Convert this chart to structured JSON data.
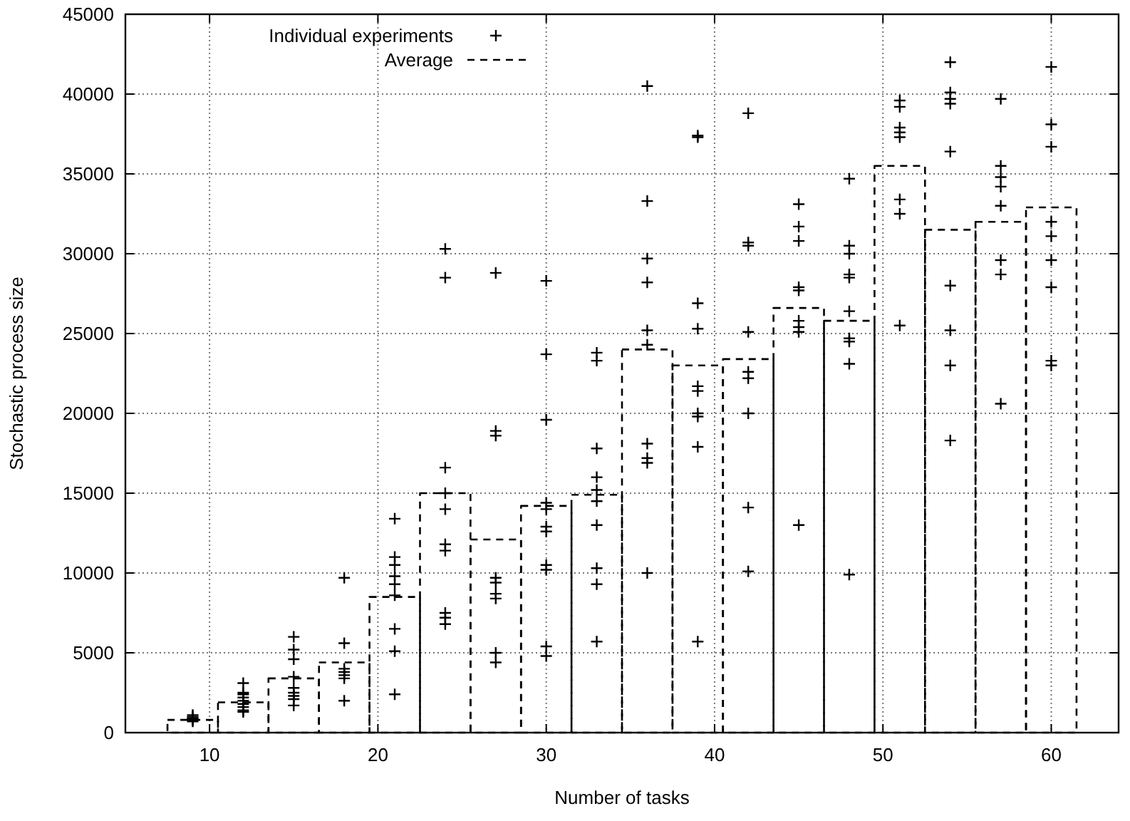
{
  "chart_data": {
    "type": "bar",
    "xlabel": "Number of tasks",
    "ylabel": "Stochastic process size",
    "x": [
      9,
      12,
      15,
      18,
      21,
      24,
      27,
      30,
      33,
      36,
      39,
      42,
      45,
      48,
      51,
      54,
      57,
      60
    ],
    "xlim": [
      5,
      64
    ],
    "xticks": [
      10,
      20,
      30,
      40,
      50,
      60
    ],
    "ylim": [
      0,
      45000
    ],
    "yticks": [
      0,
      5000,
      10000,
      15000,
      20000,
      25000,
      30000,
      35000,
      40000,
      45000
    ],
    "grid": true,
    "legend": "top left",
    "series": [
      {
        "name": "Individual experiments",
        "type": "scatter",
        "marker": "cross",
        "color": "#000000",
        "x": [
          9,
          9,
          9,
          9,
          9,
          9,
          9,
          12,
          12,
          12,
          12,
          12,
          12,
          12,
          12,
          12,
          15,
          15,
          15,
          15,
          15,
          15,
          15,
          15,
          15,
          18,
          18,
          18,
          18,
          18,
          18,
          18,
          21,
          21,
          21,
          21,
          21,
          21,
          21,
          21,
          21,
          24,
          24,
          24,
          24,
          24,
          24,
          24,
          24,
          24,
          24,
          27,
          27,
          27,
          27,
          27,
          27,
          27,
          27,
          27,
          30,
          30,
          30,
          30,
          30,
          30,
          30,
          30,
          30,
          30,
          30,
          33,
          33,
          33,
          33,
          33,
          33,
          33,
          33,
          33,
          33,
          36,
          36,
          36,
          36,
          36,
          36,
          36,
          36,
          36,
          36,
          39,
          39,
          39,
          39,
          39,
          39,
          39,
          39,
          39,
          39,
          42,
          42,
          42,
          42,
          42,
          42,
          42,
          42,
          42,
          45,
          45,
          45,
          45,
          45,
          45,
          45,
          45,
          45,
          48,
          48,
          48,
          48,
          48,
          48,
          48,
          48,
          48,
          48,
          51,
          51,
          51,
          51,
          51,
          51,
          51,
          51,
          54,
          54,
          54,
          54,
          54,
          54,
          54,
          54,
          54,
          57,
          57,
          57,
          57,
          57,
          57,
          57,
          57,
          60,
          60,
          60,
          60,
          60,
          60,
          60,
          60,
          60
        ],
        "values": [
          700,
          800,
          800,
          900,
          900,
          1000,
          1100,
          3100,
          2500,
          2200,
          2000,
          1800,
          1600,
          1400,
          1300,
          2400,
          6000,
          5200,
          4600,
          3500,
          2800,
          2500,
          2300,
          2100,
          1700,
          9700,
          5600,
          4000,
          3800,
          3600,
          3400,
          2000,
          13400,
          11000,
          10500,
          9800,
          9300,
          8600,
          6500,
          5100,
          2400,
          30300,
          28500,
          16600,
          15000,
          14000,
          11800,
          11400,
          7500,
          7200,
          6800,
          28800,
          18900,
          18600,
          9700,
          9400,
          8700,
          8400,
          5000,
          4400,
          28300,
          23700,
          19600,
          14400,
          14000,
          12900,
          12600,
          10500,
          10200,
          5400,
          4800,
          23800,
          23300,
          17800,
          16000,
          15200,
          14500,
          13000,
          10300,
          9300,
          5700,
          40500,
          33300,
          29700,
          28200,
          25200,
          24300,
          18100,
          17200,
          16900,
          10000,
          37400,
          37300,
          26900,
          25300,
          21700,
          21400,
          20000,
          19800,
          17900,
          5700,
          38800,
          30700,
          30500,
          25100,
          22600,
          22200,
          20000,
          14100,
          10100,
          33100,
          31700,
          30800,
          27900,
          27700,
          25800,
          25400,
          25100,
          13000,
          34700,
          30500,
          30000,
          28700,
          28500,
          26400,
          24700,
          24500,
          23100,
          9900,
          39600,
          39200,
          37900,
          37600,
          37300,
          33400,
          32500,
          25500,
          42000,
          40100,
          39700,
          39400,
          36400,
          28000,
          25200,
          23000,
          18300,
          39700,
          35500,
          34800,
          34200,
          33000,
          29600,
          28700,
          20600,
          41700,
          38100,
          36700,
          32000,
          31100,
          29600,
          27900,
          23000,
          23300
        ]
      },
      {
        "name": "Average",
        "line_style": "dashed",
        "color": "#000000",
        "values": [
          800,
          1900,
          3400,
          4400,
          8500,
          15000,
          12100,
          14200,
          14900,
          24000,
          23000,
          23400,
          26600,
          25800,
          35500,
          31500,
          32000,
          32900
        ]
      }
    ]
  }
}
